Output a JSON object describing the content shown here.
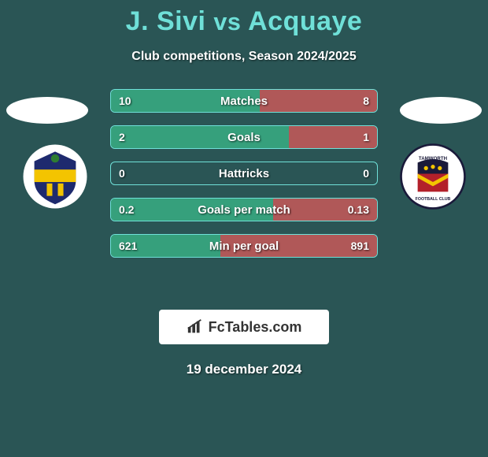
{
  "title": {
    "player1": "J. Sivi",
    "vs": "vs",
    "player2": "Acquaye",
    "color": "#6fe0d8",
    "fontsize": 34
  },
  "subtitle": "Club competitions, Season 2024/2025",
  "background_color": "#2a5555",
  "left_color": "#36a07c",
  "right_color": "#b05858",
  "border_color": "#6fe0d8",
  "stats": [
    {
      "metric": "Matches",
      "left_val": "10",
      "right_val": "8",
      "left_pct": 56,
      "right_pct": 44
    },
    {
      "metric": "Goals",
      "left_val": "2",
      "right_val": "1",
      "left_pct": 67,
      "right_pct": 33
    },
    {
      "metric": "Hattricks",
      "left_val": "0",
      "right_val": "0",
      "left_pct": 0,
      "right_pct": 0
    },
    {
      "metric": "Goals per match",
      "left_val": "0.2",
      "right_val": "0.13",
      "left_pct": 61,
      "right_pct": 39
    },
    {
      "metric": "Min per goal",
      "left_val": "621",
      "right_val": "891",
      "left_pct": 41,
      "right_pct": 59
    }
  ],
  "branding": "FcTables.com",
  "date": "19 december 2024",
  "crest_left_name": "sutton-united-crest",
  "crest_right_name": "tamworth-crest"
}
